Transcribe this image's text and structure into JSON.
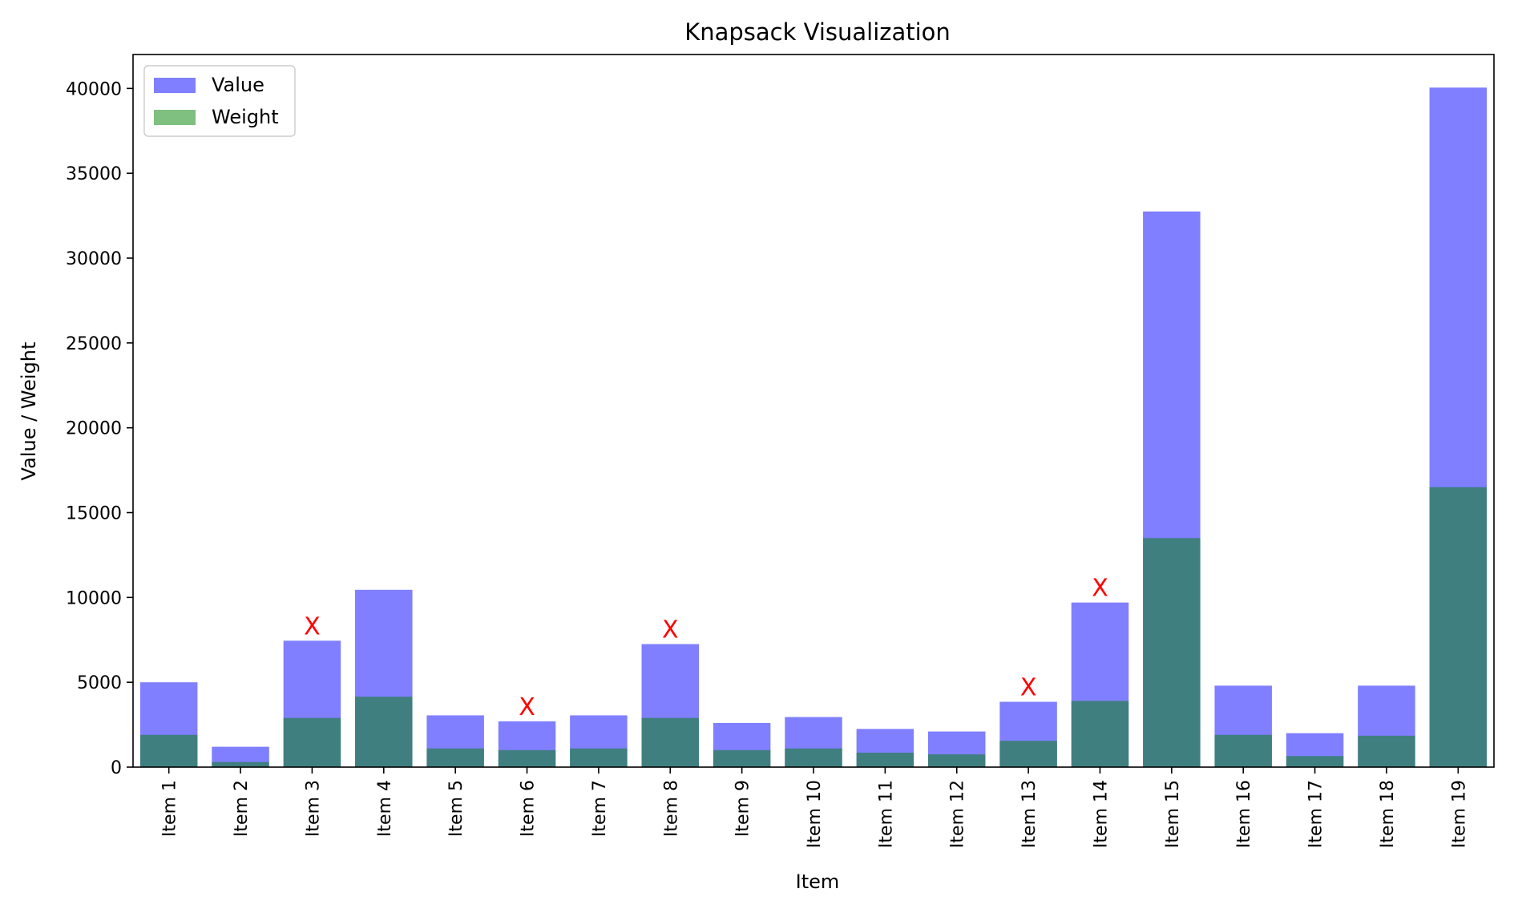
{
  "chart_data": {
    "type": "bar",
    "title": "Knapsack Visualization",
    "xlabel": "Item",
    "ylabel": "Value / Weight",
    "ylim": [
      0,
      42000
    ],
    "yticks": [
      0,
      5000,
      10000,
      15000,
      20000,
      25000,
      30000,
      35000,
      40000
    ],
    "categories": [
      "Item 1",
      "Item 2",
      "Item 3",
      "Item 4",
      "Item 5",
      "Item 6",
      "Item 7",
      "Item 8",
      "Item 9",
      "Item 10",
      "Item 11",
      "Item 12",
      "Item 13",
      "Item 14",
      "Item 15",
      "Item 16",
      "Item 17",
      "Item 18",
      "Item 19"
    ],
    "series": [
      {
        "name": "Value",
        "color": "#0000ff",
        "opacity": 0.5,
        "values": [
          5000,
          1200,
          7450,
          10450,
          3050,
          2700,
          3050,
          7250,
          2600,
          2950,
          2250,
          2100,
          3850,
          9700,
          32750,
          4800,
          2000,
          4800,
          40050
        ]
      },
      {
        "name": "Weight",
        "color": "#008000",
        "opacity": 0.5,
        "values": [
          1900,
          300,
          2900,
          4150,
          1100,
          1000,
          1100,
          2900,
          1000,
          1100,
          850,
          750,
          1550,
          3900,
          13500,
          1900,
          650,
          1850,
          16500
        ]
      }
    ],
    "excluded_marker": "X",
    "excluded_marker_color": "#ff0000",
    "excluded_items": [
      "Item 3",
      "Item 6",
      "Item 8",
      "Item 13",
      "Item 14"
    ],
    "legend": {
      "position": "top-left",
      "entries": [
        "Value",
        "Weight"
      ]
    },
    "grid": false
  }
}
